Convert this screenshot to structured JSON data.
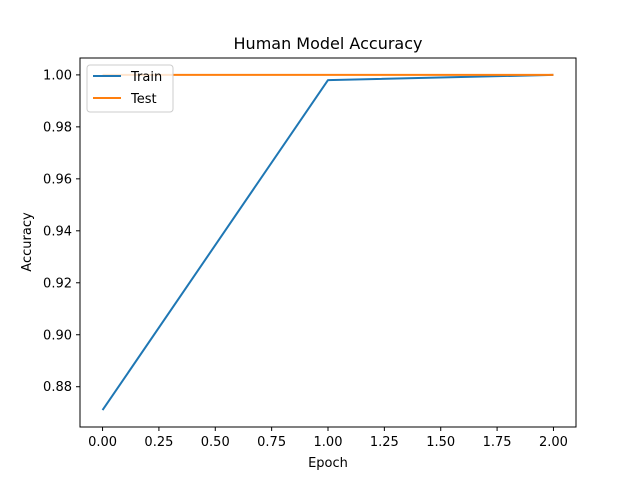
{
  "chart_data": {
    "type": "line",
    "title": "Human Model Accuracy",
    "xlabel": "Epoch",
    "ylabel": "Accuracy",
    "x": [
      0,
      1,
      2
    ],
    "series": [
      {
        "name": "Train",
        "values": [
          0.871,
          0.998,
          1.0
        ],
        "color": "#1f77b4"
      },
      {
        "name": "Test",
        "values": [
          1.0,
          1.0,
          1.0
        ],
        "color": "#ff7f0e"
      }
    ],
    "xlim": [
      -0.1,
      2.1
    ],
    "ylim": [
      0.8645,
      1.0065
    ],
    "x_ticks": [
      0.0,
      0.25,
      0.5,
      0.75,
      1.0,
      1.25,
      1.5,
      1.75,
      2.0
    ],
    "x_tick_labels": [
      "0.00",
      "0.25",
      "0.50",
      "0.75",
      "1.00",
      "1.25",
      "1.50",
      "1.75",
      "2.00"
    ],
    "y_ticks": [
      0.88,
      0.9,
      0.92,
      0.94,
      0.96,
      0.98,
      1.0
    ],
    "y_tick_labels": [
      "0.88",
      "0.90",
      "0.92",
      "0.94",
      "0.96",
      "0.98",
      "1.00"
    ],
    "grid": false,
    "legend_position": "top-left"
  }
}
